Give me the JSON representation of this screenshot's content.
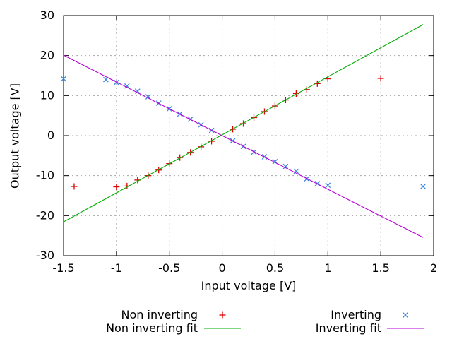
{
  "styles": {
    "background": "#ffffff",
    "grid_color": "#a8a8a8",
    "frame_color": "#000000",
    "text_color": "#000000"
  },
  "chart_data": {
    "type": "scatter",
    "title": "",
    "xlabel": "Input voltage [V]",
    "ylabel": "Output voltage [V]",
    "xlim": [
      -1.5,
      2
    ],
    "ylim": [
      -30,
      30
    ],
    "grid": true,
    "legend_position": "below, two columns",
    "xticks": {
      "values": [
        -1.5,
        -1,
        -0.5,
        0,
        0.5,
        1,
        1.5,
        2
      ],
      "labels": [
        "-1.5",
        "-1",
        "-0.5",
        "0",
        "0.5",
        "1",
        "1.5",
        "2"
      ]
    },
    "yticks": {
      "values": [
        -30,
        -20,
        -10,
        0,
        10,
        20,
        30
      ],
      "labels": [
        "-30",
        "-20",
        "-10",
        "0",
        "10",
        "20",
        "30"
      ]
    },
    "series": [
      {
        "name": "Non inverting",
        "kind": "points",
        "marker": "plus",
        "color": "#e00000",
        "points": [
          [
            -1.4,
            -12.7
          ],
          [
            -1.0,
            -12.8
          ],
          [
            -0.9,
            -12.6
          ],
          [
            -0.8,
            -11.1
          ],
          [
            -0.7,
            -10.0
          ],
          [
            -0.6,
            -8.6
          ],
          [
            -0.5,
            -7.0
          ],
          [
            -0.4,
            -5.5
          ],
          [
            -0.3,
            -4.2
          ],
          [
            -0.2,
            -2.8
          ],
          [
            -0.1,
            -1.4
          ],
          [
            0.1,
            1.6
          ],
          [
            0.2,
            3.0
          ],
          [
            0.3,
            4.5
          ],
          [
            0.4,
            6.0
          ],
          [
            0.5,
            7.4
          ],
          [
            0.6,
            8.9
          ],
          [
            0.7,
            10.5
          ],
          [
            0.8,
            11.5
          ],
          [
            0.9,
            13.0
          ],
          [
            1.0,
            14.2
          ],
          [
            1.5,
            14.3
          ]
        ]
      },
      {
        "name": "Non inverting fit",
        "kind": "line",
        "color": "#00ad00",
        "fit": {
          "slope": 14.5,
          "intercept": 0.2,
          "x_range": [
            -1.5,
            1.9
          ]
        }
      },
      {
        "name": "Inverting",
        "kind": "points",
        "marker": "cross",
        "color": "#3d85e0",
        "points": [
          [
            -1.5,
            14.2
          ],
          [
            -1.1,
            14.0
          ],
          [
            -1.0,
            13.3
          ],
          [
            -0.9,
            12.4
          ],
          [
            -0.8,
            11.1
          ],
          [
            -0.7,
            9.7
          ],
          [
            -0.6,
            8.1
          ],
          [
            -0.5,
            6.7
          ],
          [
            -0.4,
            5.4
          ],
          [
            -0.3,
            4.1
          ],
          [
            -0.2,
            2.7
          ],
          [
            -0.1,
            1.3
          ],
          [
            0.1,
            -1.3
          ],
          [
            0.2,
            -2.7
          ],
          [
            0.3,
            -4.1
          ],
          [
            0.4,
            -5.3
          ],
          [
            0.5,
            -6.5
          ],
          [
            0.6,
            -7.7
          ],
          [
            0.7,
            -8.9
          ],
          [
            0.8,
            -10.8
          ],
          [
            0.9,
            -12.0
          ],
          [
            1.0,
            -12.4
          ],
          [
            1.9,
            -12.7
          ]
        ]
      },
      {
        "name": "Inverting fit",
        "kind": "line",
        "color": "#b800d8",
        "fit": {
          "slope": -13.4,
          "intercept": 0.0,
          "x_range": [
            -1.5,
            1.9
          ]
        }
      }
    ]
  }
}
